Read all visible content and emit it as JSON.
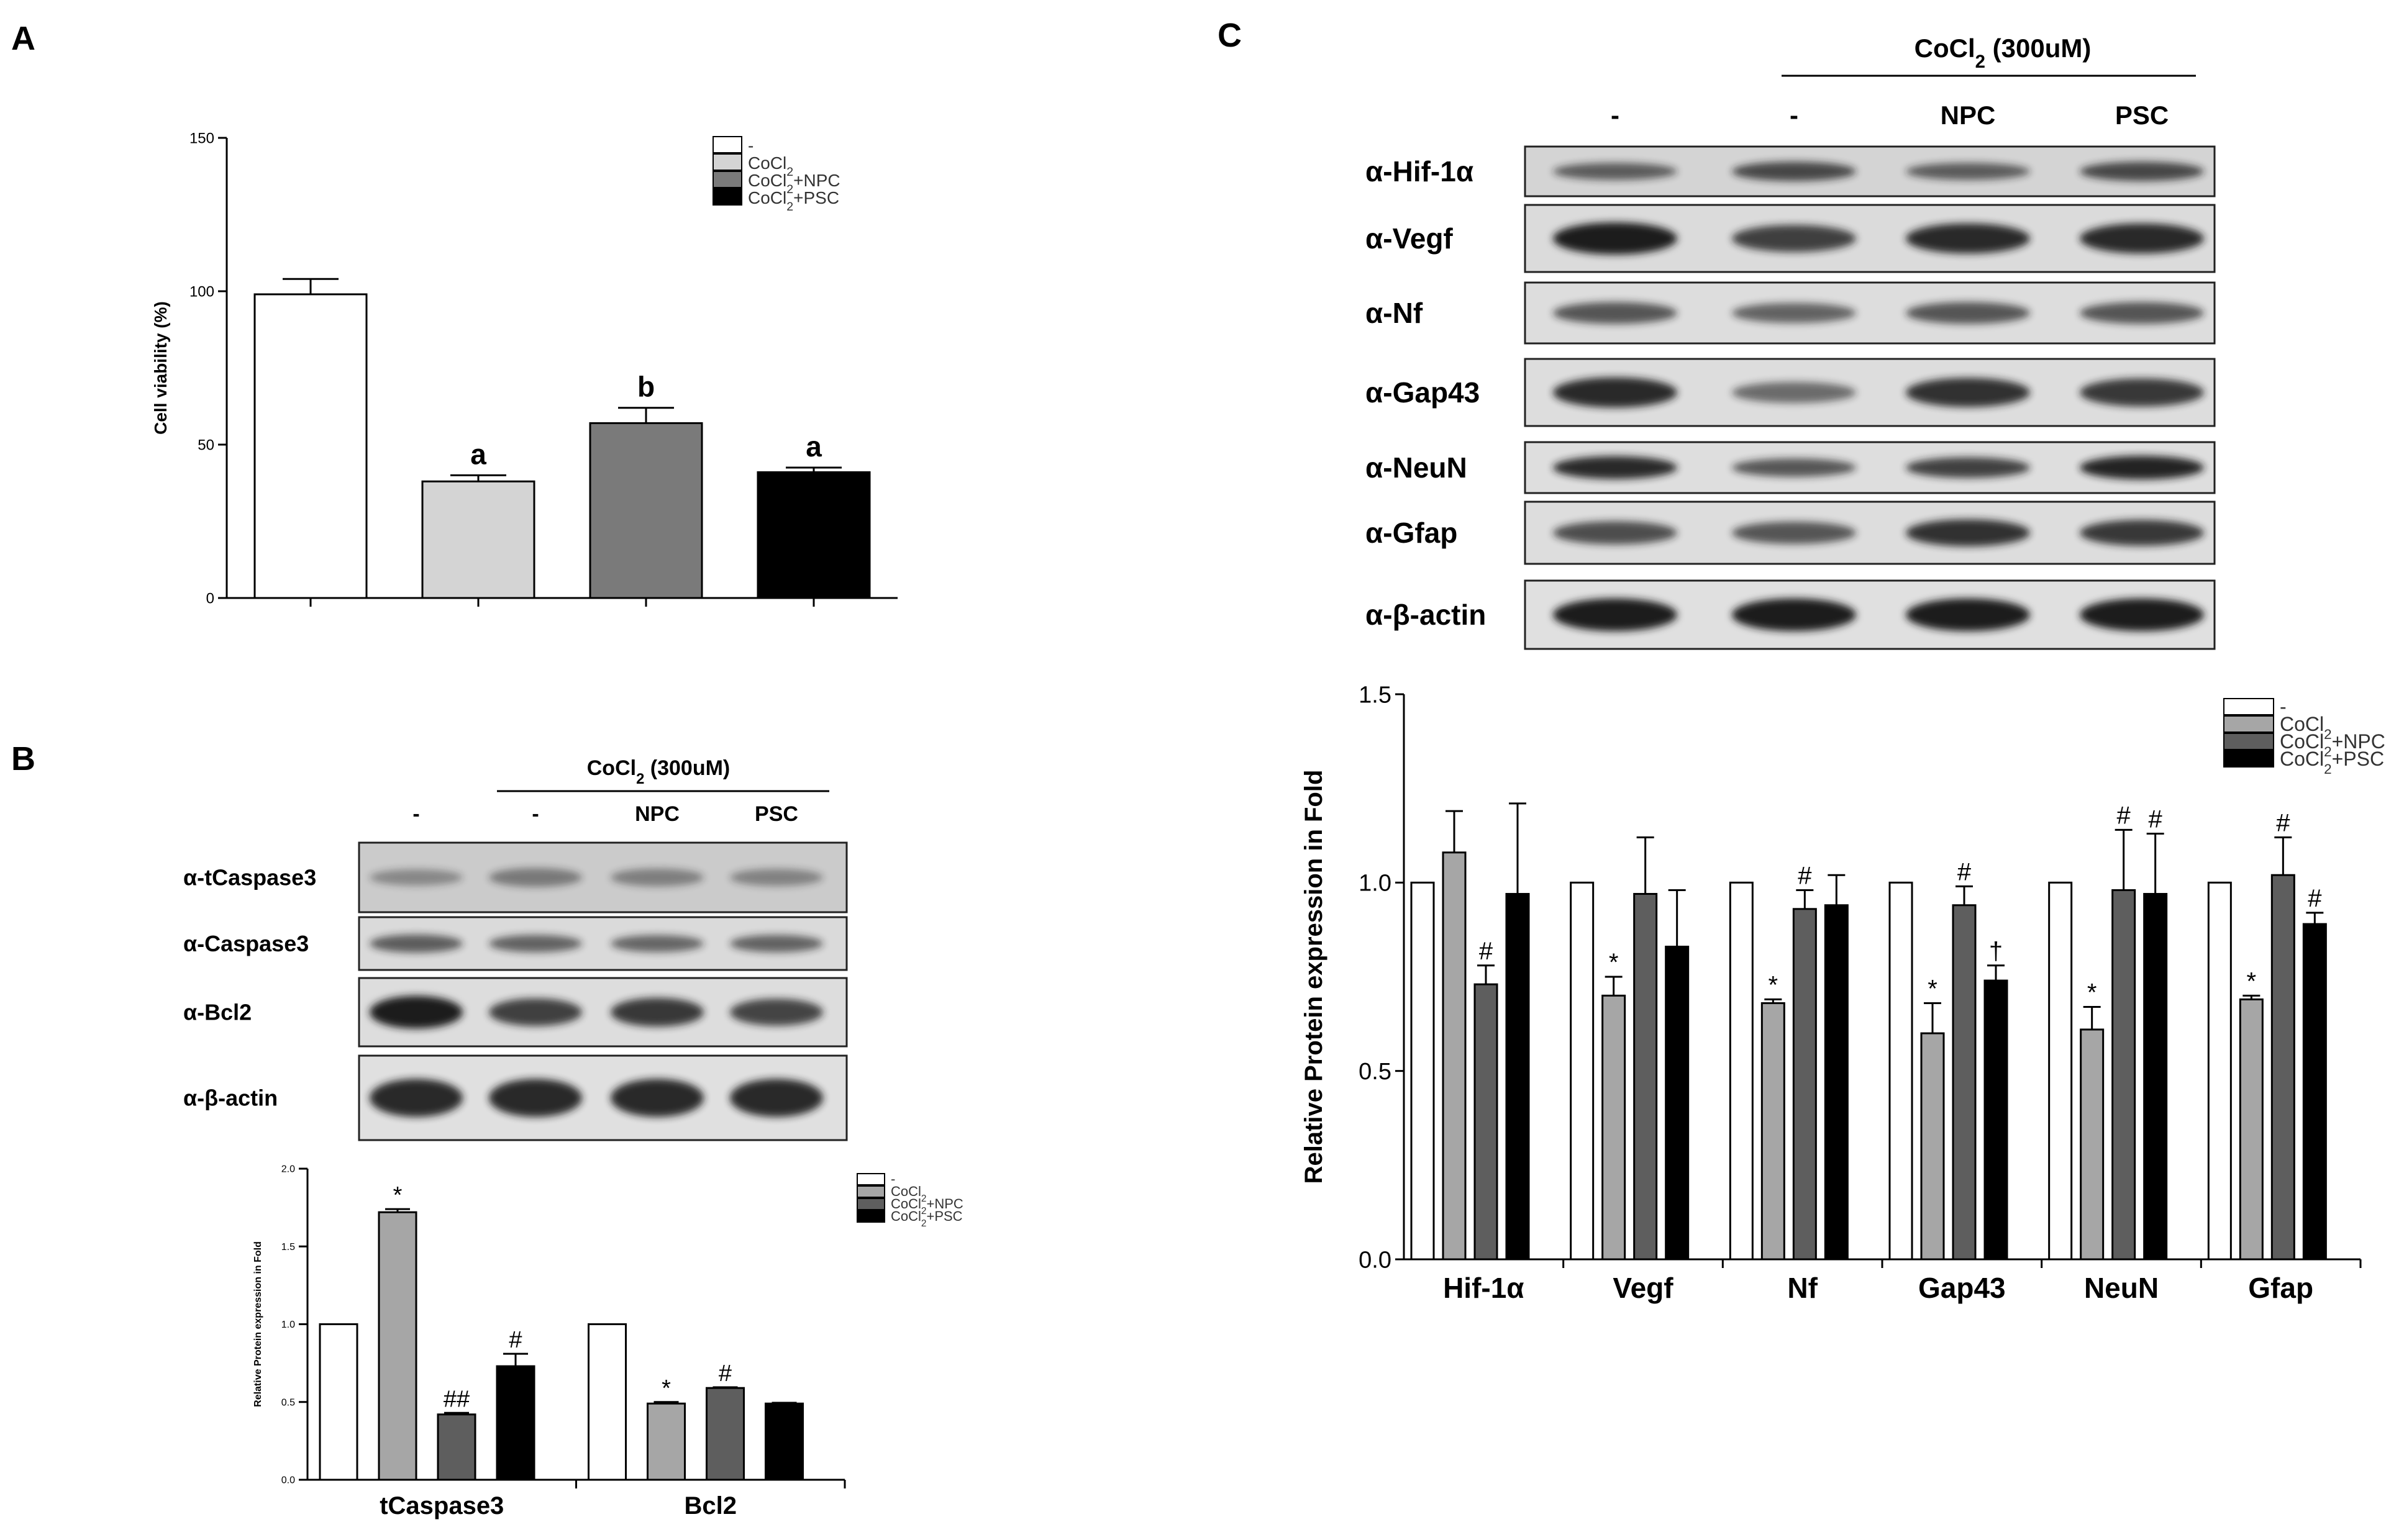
{
  "panels": {
    "a": "A",
    "b": "B",
    "c": "C"
  },
  "colors": {
    "ctrl": "#ffffff",
    "cocl2": "#d4d4d4",
    "npc": "#7a7a7a",
    "psc": "#000000",
    "cocl2_c": "#a6a6a6",
    "npc_c": "#5e5e5e",
    "band": "#1a1a1a"
  },
  "legend_labels": {
    "ctrl": "-",
    "cocl2": "CoCl2",
    "npc": "CoCl2+NPC",
    "psc": "CoCl2+PSC"
  },
  "blot_b": {
    "treatment_label": "CoCl2 (300uM)",
    "lanes": [
      "-",
      "-",
      "NPC",
      "PSC"
    ],
    "rows": [
      {
        "label": "α-tCaspase3",
        "intensity": [
          0.18,
          0.3,
          0.25,
          0.22
        ],
        "blur": 18
      },
      {
        "label": "α-Caspase3",
        "intensity": [
          0.55,
          0.5,
          0.48,
          0.5
        ],
        "blur": 8
      },
      {
        "label": "α-Bcl2",
        "intensity": [
          1.0,
          0.75,
          0.8,
          0.72
        ],
        "blur": 6
      },
      {
        "label": "α-β-actin",
        "intensity": [
          0.9,
          0.9,
          0.9,
          0.9
        ],
        "blur": 4
      }
    ]
  },
  "blot_c": {
    "treatment_label": "CoCl2 (300uM)",
    "lanes": [
      "-",
      "-",
      "NPC",
      "PSC"
    ],
    "rows": [
      {
        "label": "α-Hif-1α",
        "intensity": [
          0.55,
          0.7,
          0.55,
          0.7
        ],
        "blur": 12
      },
      {
        "label": "α-Vegf",
        "intensity": [
          1.0,
          0.75,
          0.9,
          0.9
        ],
        "blur": 7
      },
      {
        "label": "α-Nf",
        "intensity": [
          0.6,
          0.5,
          0.6,
          0.6
        ],
        "blur": 6
      },
      {
        "label": "α-Gap43",
        "intensity": [
          0.9,
          0.45,
          0.85,
          0.8
        ],
        "blur": 6
      },
      {
        "label": "α-NeuN",
        "intensity": [
          0.9,
          0.6,
          0.75,
          0.95
        ],
        "blur": 5
      },
      {
        "label": "α-Gfap",
        "intensity": [
          0.65,
          0.6,
          0.85,
          0.8
        ],
        "blur": 6
      },
      {
        "label": "α-β-actin",
        "intensity": [
          1.0,
          1.0,
          1.0,
          1.0
        ],
        "blur": 4
      }
    ]
  },
  "chart_data": [
    {
      "id": "A",
      "type": "bar",
      "ylabel": "Cell viability (%)",
      "ylim": [
        0,
        150
      ],
      "yticks": [
        0,
        50,
        100,
        150
      ],
      "categories": [
        "-",
        "CoCl2",
        "CoCl2+NPC",
        "CoCl2+PSC"
      ],
      "values": [
        99,
        38,
        57,
        41
      ],
      "errors": [
        5,
        2,
        5,
        1.5
      ],
      "annotations": [
        "",
        "a",
        "b",
        "a"
      ],
      "legend": [
        "-",
        "CoCl2",
        "CoCl2+NPC",
        "CoCl2+PSC"
      ],
      "legend_position": "top-right"
    },
    {
      "id": "B",
      "type": "bar",
      "ylabel": "Relative Protein expression in Fold",
      "ylim": [
        0,
        2.0
      ],
      "yticks": [
        0.0,
        0.5,
        1.0,
        1.5,
        2.0
      ],
      "categories": [
        "tCaspase3",
        "Bcl2"
      ],
      "series": [
        {
          "name": "-",
          "values": [
            1.0,
            1.0
          ],
          "errors": [
            0,
            0
          ],
          "annotations": [
            "",
            ""
          ]
        },
        {
          "name": "CoCl2",
          "values": [
            1.72,
            0.49
          ],
          "errors": [
            0.02,
            0.01
          ],
          "annotations": [
            "*",
            "*"
          ]
        },
        {
          "name": "CoCl2+NPC",
          "values": [
            0.42,
            0.59
          ],
          "errors": [
            0.01,
            0.005
          ],
          "annotations": [
            "##",
            "#"
          ]
        },
        {
          "name": "CoCl2+PSC",
          "values": [
            0.73,
            0.49
          ],
          "errors": [
            0.08,
            0.005
          ],
          "annotations": [
            "#",
            ""
          ]
        }
      ],
      "legend_position": "top-right"
    },
    {
      "id": "C",
      "type": "bar",
      "ylabel": "Relative Protein expression in Fold",
      "ylim": [
        0,
        1.5
      ],
      "yticks": [
        0.0,
        0.5,
        1.0,
        1.5
      ],
      "categories": [
        "Hif-1α",
        "Vegf",
        "Nf",
        "Gap43",
        "NeuN",
        "Gfap"
      ],
      "series": [
        {
          "name": "-",
          "values": [
            1.0,
            1.0,
            1.0,
            1.0,
            1.0,
            1.0
          ],
          "errors": [
            0,
            0,
            0,
            0,
            0,
            0
          ],
          "annotations": [
            "",
            "",
            "",
            "",
            "",
            ""
          ]
        },
        {
          "name": "CoCl2",
          "values": [
            1.08,
            0.7,
            0.68,
            0.6,
            0.61,
            0.69
          ],
          "errors": [
            0.11,
            0.05,
            0.01,
            0.08,
            0.06,
            0.01
          ],
          "annotations": [
            "",
            "*",
            "*",
            "*",
            "*",
            "*"
          ]
        },
        {
          "name": "CoCl2+NPC",
          "values": [
            0.73,
            0.97,
            0.93,
            0.94,
            0.98,
            1.02
          ],
          "errors": [
            0.05,
            0.15,
            0.05,
            0.05,
            0.16,
            0.1
          ],
          "annotations": [
            "#",
            "",
            "#",
            "#",
            "#",
            "#"
          ]
        },
        {
          "name": "CoCl2+PSC",
          "values": [
            0.97,
            0.83,
            0.94,
            0.74,
            0.97,
            0.89
          ],
          "errors": [
            0.24,
            0.15,
            0.08,
            0.04,
            0.16,
            0.03
          ],
          "annotations": [
            "",
            "",
            "",
            "†",
            "#",
            "#"
          ]
        }
      ],
      "legend_position": "top-right"
    }
  ]
}
